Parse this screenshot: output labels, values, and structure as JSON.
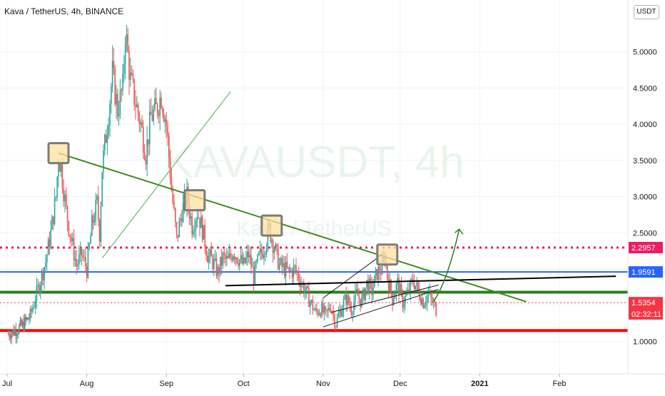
{
  "header": {
    "title": "Kava / TetherUS, 4h, BINANCE",
    "currency": "USDT"
  },
  "watermark": {
    "symbol": "KAVAUSDT, 4h",
    "name": "Kava / TetherUS"
  },
  "price_badges": [
    {
      "label": "2.2957",
      "value": 2.2957,
      "color": "#e91e63"
    },
    {
      "label": "1.9591",
      "value": 1.9591,
      "color": "#2962ff"
    },
    {
      "label": "1.5354",
      "value": 1.5354,
      "color": "#f23645"
    },
    {
      "label": "02:32:11",
      "value": 1.38,
      "color": "#f23645"
    }
  ],
  "chart_data": {
    "type": "candlestick",
    "symbol": "Kava / TetherUS",
    "interval": "4h",
    "exchange": "BINANCE",
    "ylim": [
      0.5,
      5.5
    ],
    "yticks": [
      1.0,
      1.5,
      2.0,
      2.5,
      3.0,
      3.5,
      4.0,
      4.5,
      5.0
    ],
    "ytick_labels": [
      "1.0000",
      "1.5000",
      "2.0000",
      "2.5000",
      "3.0000",
      "3.5000",
      "4.0000",
      "4.5000",
      "5.0000"
    ],
    "xticks": [
      {
        "label": "Jul",
        "day": 0
      },
      {
        "label": "Aug",
        "day": 31
      },
      {
        "label": "Sep",
        "day": 62
      },
      {
        "label": "Oct",
        "day": 92
      },
      {
        "label": "Nov",
        "day": 123
      },
      {
        "label": "Dec",
        "day": 153
      },
      {
        "label": "2021",
        "day": 184
      },
      {
        "label": "Feb",
        "day": 215
      }
    ],
    "xlim_days": [
      0,
      239
    ],
    "price_path": [
      [
        0,
        1.1
      ],
      [
        3,
        1.15
      ],
      [
        6,
        1.22
      ],
      [
        9,
        1.35
      ],
      [
        11,
        1.6
      ],
      [
        13,
        1.85
      ],
      [
        15,
        2.1
      ],
      [
        17,
        2.5
      ],
      [
        19,
        3.0
      ],
      [
        20,
        3.55
      ],
      [
        21,
        3.4
      ],
      [
        23,
        2.8
      ],
      [
        25,
        2.4
      ],
      [
        27,
        2.05
      ],
      [
        29,
        2.2
      ],
      [
        31,
        2.0
      ],
      [
        33,
        2.6
      ],
      [
        35,
        2.9
      ],
      [
        36,
        2.5
      ],
      [
        37,
        3.4
      ],
      [
        39,
        4.0
      ],
      [
        41,
        4.7
      ],
      [
        43,
        4.2
      ],
      [
        45,
        4.5
      ],
      [
        46,
        5.3
      ],
      [
        48,
        4.6
      ],
      [
        50,
        4.3
      ],
      [
        52,
        4.0
      ],
      [
        54,
        3.6
      ],
      [
        56,
        4.1
      ],
      [
        58,
        4.2
      ],
      [
        60,
        4.4
      ],
      [
        62,
        4.0
      ],
      [
        64,
        3.1
      ],
      [
        66,
        2.4
      ],
      [
        68,
        2.8
      ],
      [
        70,
        3.0
      ],
      [
        72,
        2.6
      ],
      [
        74,
        2.8
      ],
      [
        76,
        2.55
      ],
      [
        78,
        2.2
      ],
      [
        80,
        2.1
      ],
      [
        82,
        1.95
      ],
      [
        84,
        2.15
      ],
      [
        86,
        2.1
      ],
      [
        88,
        2.25
      ],
      [
        90,
        2.15
      ],
      [
        92,
        2.05
      ],
      [
        94,
        2.2
      ],
      [
        96,
        1.9
      ],
      [
        98,
        2.15
      ],
      [
        100,
        2.3
      ],
      [
        102,
        2.55
      ],
      [
        104,
        2.3
      ],
      [
        106,
        2.05
      ],
      [
        108,
        2.0
      ],
      [
        110,
        1.95
      ],
      [
        112,
        2.0
      ],
      [
        114,
        1.85
      ],
      [
        116,
        1.7
      ],
      [
        118,
        1.55
      ],
      [
        120,
        1.4
      ],
      [
        122,
        1.45
      ],
      [
        124,
        1.35
      ],
      [
        126,
        1.5
      ],
      [
        128,
        1.25
      ],
      [
        130,
        1.45
      ],
      [
        132,
        1.6
      ],
      [
        134,
        1.45
      ],
      [
        136,
        1.65
      ],
      [
        138,
        1.55
      ],
      [
        140,
        1.8
      ],
      [
        142,
        1.7
      ],
      [
        144,
        1.95
      ],
      [
        146,
        2.0
      ],
      [
        147,
        2.2
      ],
      [
        148,
        1.9
      ],
      [
        150,
        1.6
      ],
      [
        152,
        1.8
      ],
      [
        154,
        1.55
      ],
      [
        156,
        1.65
      ],
      [
        158,
        1.85
      ],
      [
        160,
        1.7
      ],
      [
        162,
        1.55
      ],
      [
        164,
        1.65
      ],
      [
        166,
        1.5
      ],
      [
        167,
        1.45
      ]
    ],
    "horizontal_levels": [
      {
        "price": 2.2957,
        "color": "#e91e63",
        "style": "dotted"
      },
      {
        "price": 1.9591,
        "color": "#2962ff",
        "style": "solid"
      },
      {
        "price": 1.68,
        "color": "#2e7d1f",
        "style": "solid"
      },
      {
        "price": 1.5354,
        "color": "#f23645",
        "style": "dotted-thin"
      },
      {
        "price": 1.15,
        "color": "#ff0000",
        "style": "solid"
      }
    ],
    "trendlines": [
      {
        "from": [
          20,
          3.6
        ],
        "to": [
          202,
          1.55
        ],
        "color": "#3f8b1f"
      },
      {
        "from": [
          37,
          2.15
        ],
        "to": [
          87,
          4.45
        ],
        "color": "#4caf50"
      },
      {
        "from": [
          85,
          1.77
        ],
        "to": [
          237,
          1.9
        ],
        "color": "#000000"
      },
      {
        "from": [
          126,
          1.4
        ],
        "to": [
          168,
          1.78
        ],
        "color": "#131722"
      },
      {
        "from": [
          123,
          1.2
        ],
        "to": [
          168,
          1.72
        ],
        "color": "#131722"
      },
      {
        "from": [
          123,
          1.6
        ],
        "to": [
          146,
          2.2
        ],
        "color": "#131722"
      }
    ],
    "highlight_boxes": [
      {
        "day": 20,
        "price": 3.6
      },
      {
        "day": 73,
        "price": 2.95
      },
      {
        "day": 103,
        "price": 2.6
      },
      {
        "day": 148,
        "price": 2.2
      }
    ],
    "projection_arrow": {
      "from": [
        166,
        1.55
      ],
      "to": [
        176,
        2.55
      ],
      "color": "#2e7d1f"
    }
  }
}
